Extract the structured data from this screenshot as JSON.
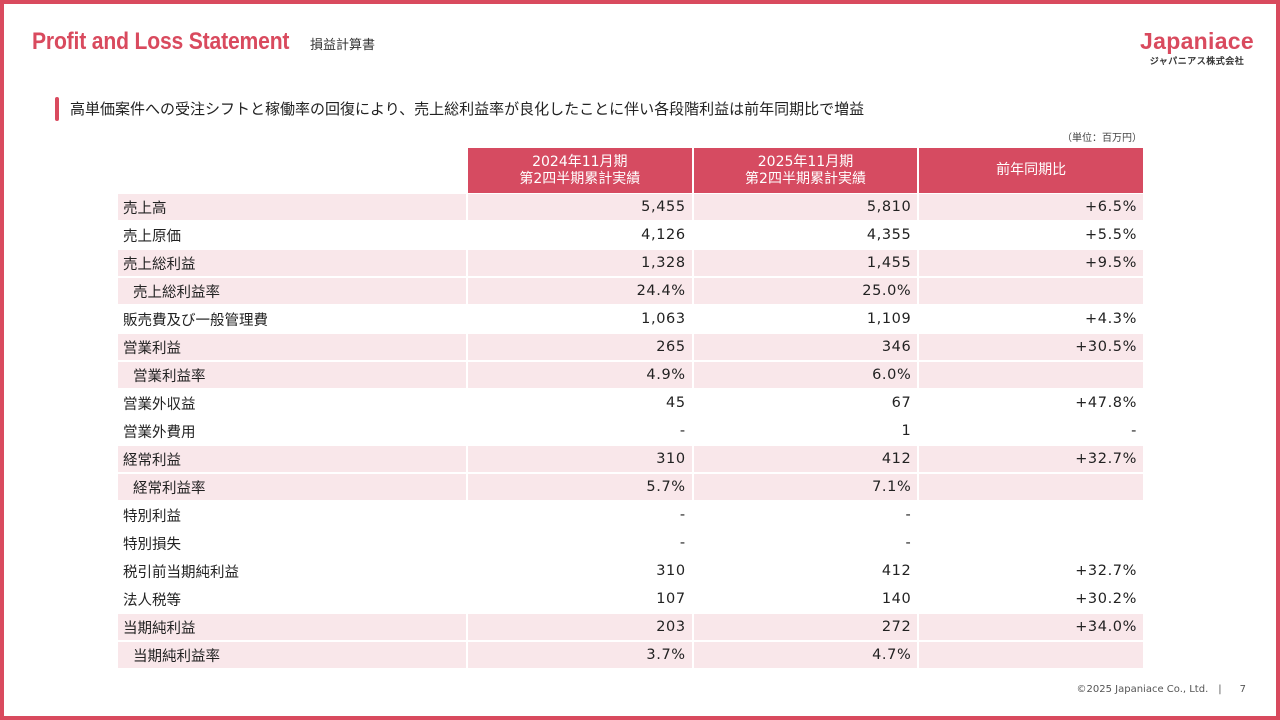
{
  "header": {
    "title_en": "Profit and Loss Statement",
    "title_ja": "損益計算書",
    "logo_main": "Japaniace",
    "logo_sub": "ジャパニアス株式会社"
  },
  "headline": "高単価案件への受注シフトと稼働率の回復により、売上総利益率が良化したことに伴い各段階利益は前年同期比で増益",
  "unit": "（単位：百万円）",
  "table": {
    "col1_line1": "2024年11月期",
    "col1_line2": "第2四半期累計実績",
    "col2_line1": "2025年11月期",
    "col2_line2": "第2四半期累計実績",
    "col3": "前年同期比",
    "rows": [
      {
        "label": "売上高",
        "v2024": "5,455",
        "v2025": "5,810",
        "yoy": "+6.5%"
      },
      {
        "label": "売上原価",
        "v2024": "4,126",
        "v2025": "4,355",
        "yoy": "+5.5%"
      },
      {
        "label": "売上総利益",
        "v2024": "1,328",
        "v2025": "1,455",
        "yoy": "+9.5%"
      },
      {
        "label": "売上総利益率",
        "v2024": "24.4%",
        "v2025": "25.0%",
        "yoy": ""
      },
      {
        "label": "販売費及び一般管理費",
        "v2024": "1,063",
        "v2025": "1,109",
        "yoy": "+4.3%"
      },
      {
        "label": "営業利益",
        "v2024": "265",
        "v2025": "346",
        "yoy": "+30.5%"
      },
      {
        "label": "営業利益率",
        "v2024": "4.9%",
        "v2025": "6.0%",
        "yoy": ""
      },
      {
        "label": "営業外収益",
        "v2024": "45",
        "v2025": "67",
        "yoy": "+47.8%"
      },
      {
        "label": "営業外費用",
        "v2024": "-",
        "v2025": "1",
        "yoy": "-"
      },
      {
        "label": "経常利益",
        "v2024": "310",
        "v2025": "412",
        "yoy": "+32.7%"
      },
      {
        "label": "経常利益率",
        "v2024": "5.7%",
        "v2025": "7.1%",
        "yoy": ""
      },
      {
        "label": "特別利益",
        "v2024": "-",
        "v2025": "-",
        "yoy": ""
      },
      {
        "label": "特別損失",
        "v2024": "-",
        "v2025": "-",
        "yoy": ""
      },
      {
        "label": "税引前当期純利益",
        "v2024": "310",
        "v2025": "412",
        "yoy": "+32.7%"
      },
      {
        "label": "法人税等",
        "v2024": "107",
        "v2025": "140",
        "yoy": "+30.2%"
      },
      {
        "label": "当期純利益",
        "v2024": "203",
        "v2025": "272",
        "yoy": "+34.0%"
      },
      {
        "label": "当期純利益率",
        "v2024": "3.7%",
        "v2025": "4.7%",
        "yoy": ""
      }
    ]
  },
  "footer": {
    "copyright": "©2025 Japaniace Co., Ltd.",
    "separator": "|",
    "page": "7"
  },
  "colors": {
    "accent": "#d94a5e",
    "header_fill": "#d64b61",
    "row_shade": "#f9e7ea"
  }
}
